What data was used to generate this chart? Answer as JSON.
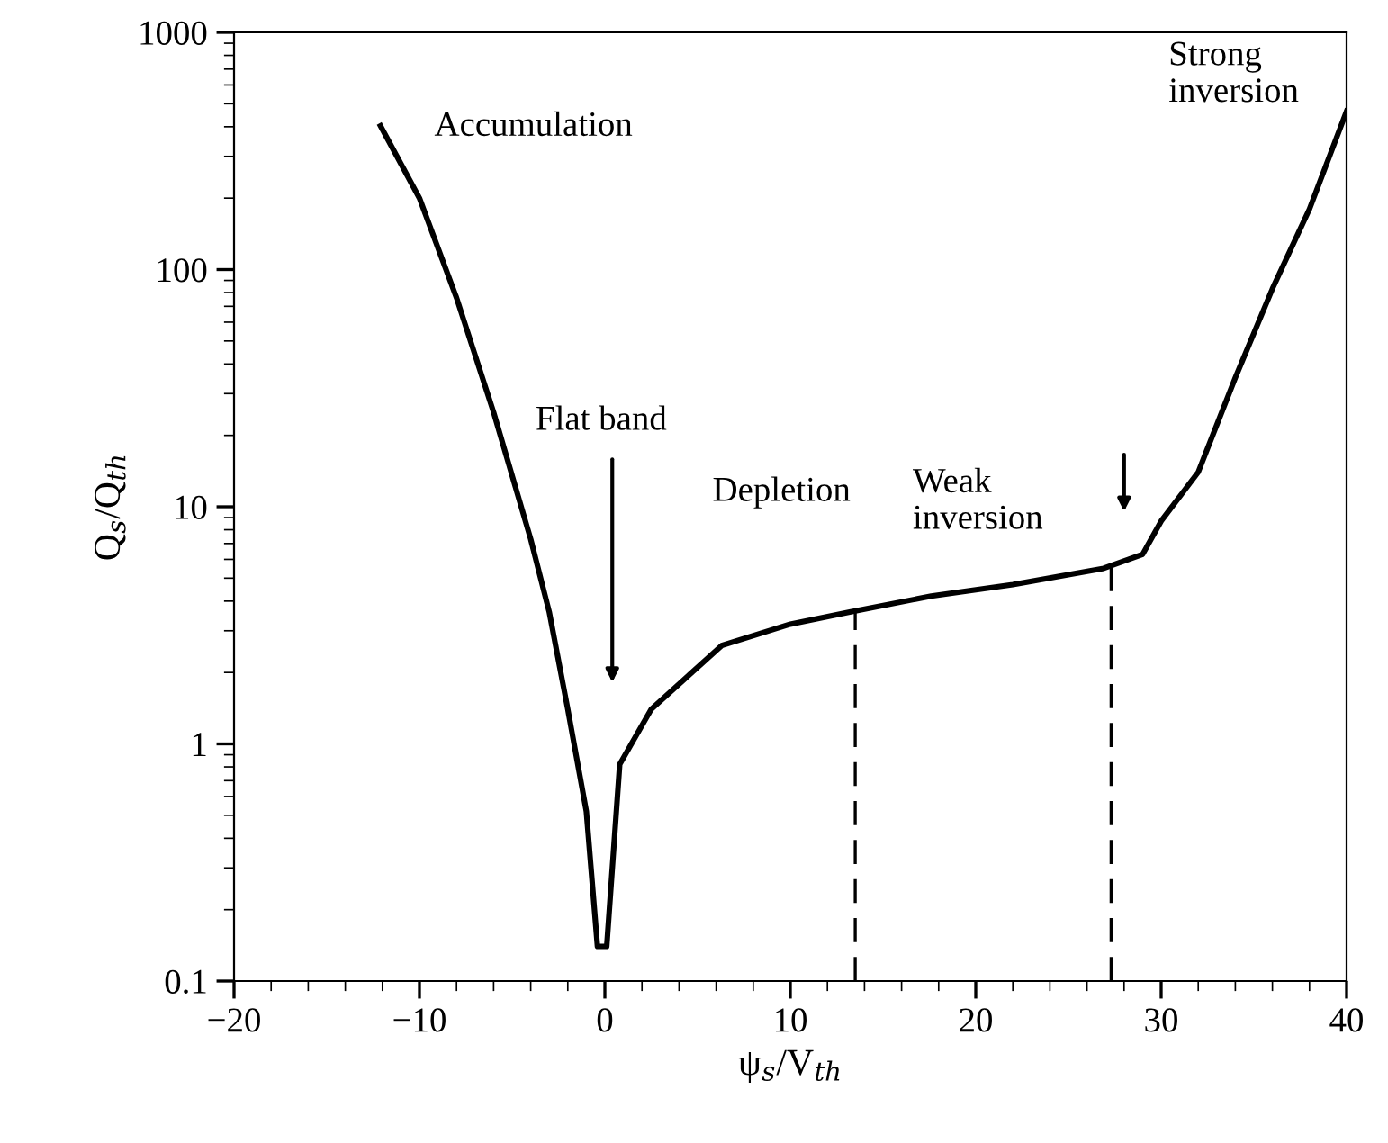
{
  "chart_data": {
    "type": "line",
    "xlabel": "ψ$_{s}$/V$_{th}$",
    "ylabel": "Q$_{s}$/Q$_{th}$",
    "log": "y",
    "series": [
      {
        "color": "#000000",
        "x": [
          -12.1,
          -10,
          -8,
          -6,
          -4,
          -3,
          -2,
          -1,
          -0.4,
          0.1,
          0.8,
          2.5,
          6.3,
          10,
          13.2,
          17.6,
          22,
          26.9,
          29,
          30,
          32,
          34,
          36,
          38,
          40
        ],
        "values": [
          403,
          200,
          76,
          25,
          7.3,
          3.6,
          1.4,
          0.52,
          0.14,
          0.14,
          0.82,
          1.4,
          2.6,
          3.2,
          3.6,
          4.2,
          4.7,
          5.5,
          6.3,
          8.7,
          14,
          35,
          83,
          180,
          465
        ]
      }
    ],
    "xlim": [
      -20,
      40
    ],
    "xticks": [
      -20,
      -10,
      0,
      10,
      20,
      30,
      40
    ],
    "ylim": [
      0.1,
      1000
    ],
    "yticks": [
      0.1,
      1,
      10,
      100,
      1000
    ],
    "ref_lines": [
      {
        "axis": "x",
        "value": 13.5,
        "line_style": "dashed"
      },
      {
        "axis": "x",
        "value": 27.3,
        "line_style": "dashed"
      }
    ],
    "annotations": [
      "Accumulation",
      "Flat band",
      "Depletion",
      "Weak\ninversion",
      "Strong\ninversion"
    ],
    "grid": false,
    "legend": false,
    "marker": "none",
    "line_style": "solid"
  }
}
